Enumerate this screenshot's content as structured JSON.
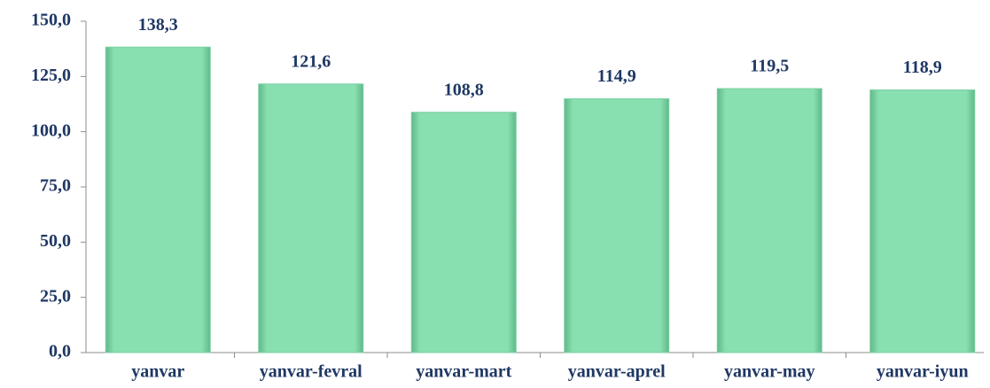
{
  "chart_data": {
    "type": "bar",
    "categories": [
      "yanvar",
      "yanvar-fevral",
      "yanvar-mart",
      "yanvar-aprel",
      "yanvar-may",
      "yanvar-iyun"
    ],
    "values": [
      138.3,
      121.6,
      108.8,
      114.9,
      119.5,
      118.9
    ],
    "value_labels": [
      "138,3",
      "121,6",
      "108,8",
      "114,9",
      "119,5",
      "118,9"
    ],
    "color": "#88dfb0",
    "ylim": [
      0,
      150
    ],
    "yticks": [
      {
        "value": 0,
        "label": "0,0"
      },
      {
        "value": 25,
        "label": "25,0"
      },
      {
        "value": 50,
        "label": "50,0"
      },
      {
        "value": 75,
        "label": "75,0"
      },
      {
        "value": 100,
        "label": "100,0"
      },
      {
        "value": 125,
        "label": "125,0"
      },
      {
        "value": 150,
        "label": "150,0"
      }
    ],
    "grid": false
  }
}
